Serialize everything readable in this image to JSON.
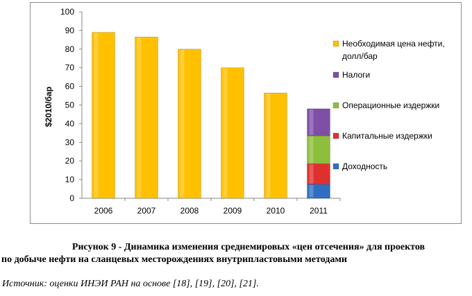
{
  "chart_data": {
    "type": "bar",
    "stacked": true,
    "categories": [
      "2006",
      "2007",
      "2008",
      "2009",
      "2010",
      "2011"
    ],
    "series": [
      {
        "name": "Необходимая цена нефти, долл/бар",
        "color": "#FFC000",
        "values": [
          89,
          86.5,
          80,
          70,
          56.5,
          0
        ]
      },
      {
        "name": "Налоги",
        "color": "#7F4FA8",
        "values": [
          0,
          0,
          0,
          0,
          0,
          14.5
        ]
      },
      {
        "name": "Операционные издержки",
        "color": "#8DBE3C",
        "values": [
          0,
          0,
          0,
          0,
          0,
          15
        ]
      },
      {
        "name": "Капитальные издержки",
        "color": "#E0302E",
        "values": [
          0,
          0,
          0,
          0,
          0,
          11
        ]
      },
      {
        "name": "Доходность",
        "color": "#2E6FC4",
        "values": [
          0,
          0,
          0,
          0,
          0,
          7.5
        ]
      }
    ],
    "stack_order_bottom_to_top": [
      "Доходность",
      "Капитальные издержки",
      "Операционные издержки",
      "Налоги",
      "Необходимая цена нефти, долл/бар"
    ],
    "ylabel": "$2010/бар",
    "ylim": [
      0,
      100
    ],
    "yticks": [
      "0",
      "10",
      "20",
      "30",
      "40",
      "50",
      "60",
      "70",
      "80",
      "90",
      "100"
    ],
    "grid": false,
    "legend_position": "right"
  },
  "caption": {
    "line1": "Рисунок 9 - Динамика изменения среднемировых «цен отсечения» для проектов",
    "line2": "по добыче нефти на сланцевых месторождениях внутрипластовыми методами"
  },
  "source": "Источник: оценки ИНЭИ РАН на основе [18], [19], [20], [21]."
}
